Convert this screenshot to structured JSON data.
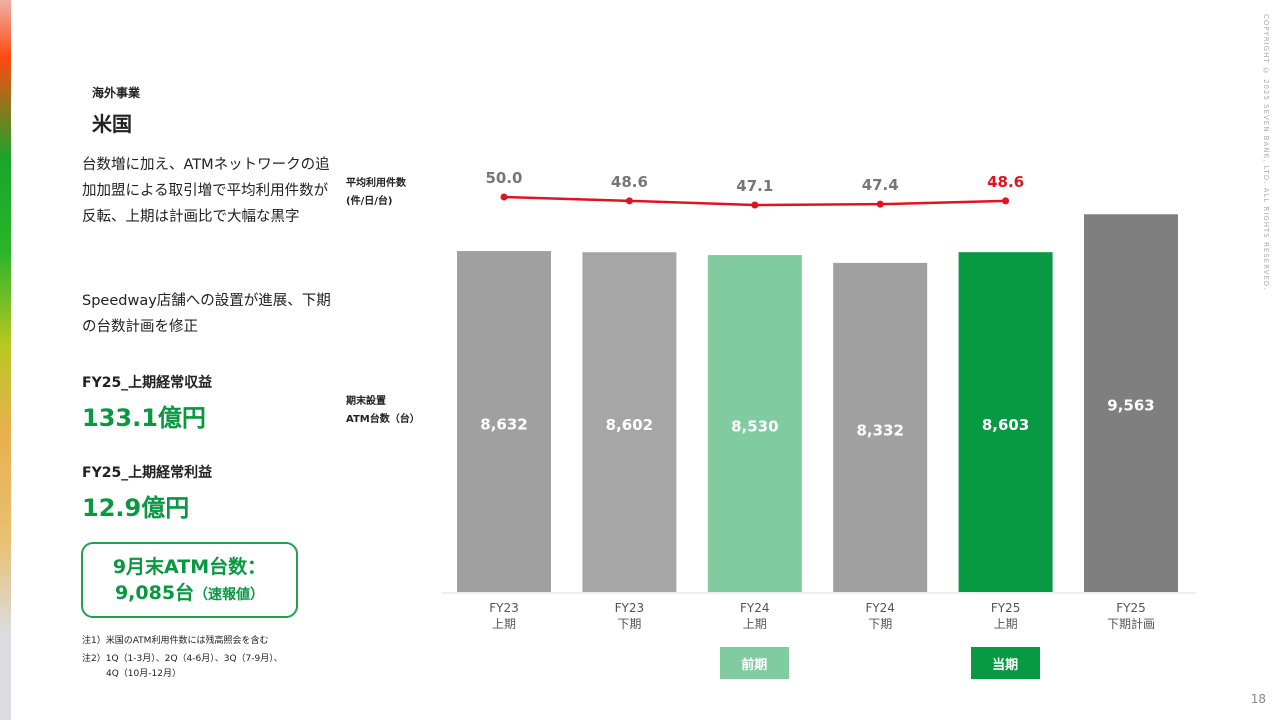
{
  "header": {
    "category": "海外事業",
    "title": "米国"
  },
  "body": {
    "para1": "台数増に加え、ATMネットワークの追加加盟による取引増で平均利用件数が反転、上期は計画比で大幅な黒字",
    "para2": "Speedway店舗への設置が進展、下期の台数計画を修正"
  },
  "kpis": [
    {
      "label": "FY25_上期経常収益",
      "value": "133.1億円"
    },
    {
      "label": "FY25_上期経常利益",
      "value": "12.9億円"
    }
  ],
  "callout": {
    "line1": "9月末ATM台数：",
    "line2": "9,085台",
    "suffix": "（速報値）"
  },
  "notes": [
    "注1）米国のATM利用件数には残高照会を含む",
    "注2）1Q（1-3月）、2Q（4-6月）、3Q（7-9月）、",
    "4Q（10月-12月）"
  ],
  "copyright": "COPYRIGHT © 2025 SEVEN BANK, LTD. ALL RIGHTS RESERVED.",
  "page_number": "18",
  "colors": {
    "gray_bar": "#a0a0a0",
    "light_green": "#80cba0",
    "green": "#079a42",
    "dark_gray": "#7f7f7f",
    "line": "#e0141e"
  },
  "chart_data": {
    "type": "bar+line",
    "categories": [
      [
        "FY23",
        "上期"
      ],
      [
        "FY23",
        "下期"
      ],
      [
        "FY24",
        "上期"
      ],
      [
        "FY24",
        "下期"
      ],
      [
        "FY25",
        "上期"
      ],
      [
        "FY25",
        "下期計画"
      ]
    ],
    "bar_label": [
      "期末設置",
      "ATM台数（台）"
    ],
    "line_label": [
      "平均利用件数",
      "(件/日/台)"
    ],
    "bars": {
      "values": [
        8632,
        8602,
        8530,
        8332,
        8603,
        9563
      ],
      "labels": [
        "8,632",
        "8,602",
        "8,530",
        "8,332",
        "8,603",
        "9,563"
      ],
      "colors": [
        "#a0a0a0",
        "#a6a6a6",
        "#80cba0",
        "#a0a0a0",
        "#079a42",
        "#7f7f7f"
      ]
    },
    "line": {
      "values": [
        50.0,
        48.6,
        47.1,
        47.4,
        48.6
      ],
      "labels": [
        "50.0",
        "48.6",
        "47.1",
        "47.4",
        "48.6"
      ]
    },
    "period_tags": [
      {
        "label": "前期",
        "category_index": 2,
        "color": "#80cba0"
      },
      {
        "label": "当期",
        "category_index": 4,
        "color": "#079a42"
      }
    ]
  }
}
